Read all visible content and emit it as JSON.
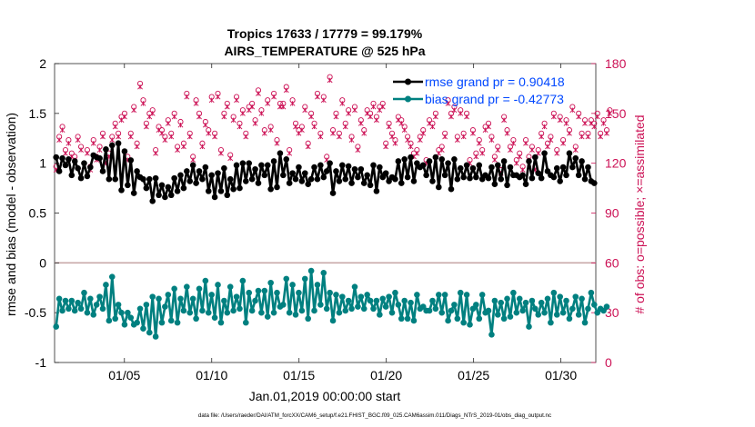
{
  "chart_data": {
    "type": "line",
    "title": "Tropics 17633 / 17779 = 99.179%",
    "subtitle": "AIRS_TEMPERATURE @ 525 hPa",
    "xlabel": "Jan.01,2019 00:00:00 start",
    "ylabel_left": "rmse and bias (model - observation)",
    "ylabel_right": "# of obs: o=possible; ×=assimilated",
    "footer": "data file: /Users/raeder/DAI/ATM_forcXX/CAM6_setup/f.e21.FHIST_BGC.f09_025.CAM6assim.011/Diags_NTrS_2019-01/obs_diag_output.nc",
    "x_ticks": [
      "01/05",
      "01/10",
      "01/15",
      "01/20",
      "01/25",
      "01/30"
    ],
    "x_tick_days": [
      5,
      10,
      15,
      20,
      25,
      30
    ],
    "xlim": [
      1,
      32
    ],
    "ylim_left": [
      -1,
      2
    ],
    "yticks_left": [
      "-1",
      "-0.5",
      "0",
      "0.5",
      "1",
      "1.5",
      "2"
    ],
    "ylim_right": [
      0,
      180
    ],
    "yticks_right": [
      "0",
      "30",
      "60",
      "90",
      "120",
      "150",
      "180"
    ],
    "zero_line": 0,
    "colors": {
      "rmse": "#000000",
      "bias": "#008080",
      "obs": "#cc1155",
      "legend_text": "#0047ff",
      "zero": "#c8a8a8"
    },
    "legend": [
      {
        "key": "rmse",
        "label": "rmse grand pr = 0.90418"
      },
      {
        "key": "bias",
        "label": "bias grand pr = -0.42773"
      }
    ],
    "series": [
      {
        "name": "rmse",
        "axis": "left",
        "values": [
          1.06,
          0.92,
          1.05,
          0.98,
          1.04,
          0.88,
          1.02,
          0.95,
          0.85,
          1.0,
          0.87,
          0.96,
          1.08,
          1.06,
          1.05,
          0.92,
          1.14,
          0.84,
          1.18,
          0.84,
          1.2,
          0.73,
          1.12,
          0.78,
          1.03,
          0.7,
          0.92,
          0.86,
          0.84,
          0.75,
          0.84,
          0.62,
          0.85,
          0.68,
          0.78,
          0.66,
          0.76,
          0.68,
          0.85,
          0.72,
          0.88,
          0.75,
          0.92,
          0.82,
          0.98,
          0.8,
          0.92,
          0.84,
          0.96,
          0.72,
          0.88,
          0.66,
          0.9,
          0.72,
          0.95,
          0.68,
          0.84,
          0.74,
          0.98,
          0.75,
          1.0,
          0.82,
          1.0,
          0.84,
          0.94,
          0.8,
          0.98,
          0.88,
          0.98,
          0.74,
          1.02,
          0.76,
          1.1,
          0.88,
          1.04,
          0.8,
          0.9,
          0.84,
          0.96,
          0.82,
          0.9,
          0.79,
          0.84,
          0.96,
          0.84,
          0.98,
          0.86,
          0.92,
          1.0,
          0.7,
          0.92,
          0.82,
          0.98,
          0.84,
          0.97,
          0.8,
          0.94,
          0.86,
          0.94,
          0.8,
          0.88,
          0.78,
          0.98,
          0.72,
          0.96,
          0.86,
          0.9,
          0.82,
          0.86,
          0.84,
          1.02,
          0.8,
          1.04,
          0.86,
          1.06,
          0.82,
          1.0,
          0.96,
          0.98,
          0.88,
          1.02,
          0.82,
          1.06,
          0.76,
          1.04,
          0.88,
          1.0,
          0.74,
          1.04,
          0.84,
          0.95,
          0.86,
          0.98,
          0.85,
          0.95,
          0.86,
          0.98,
          0.84,
          0.88,
          0.85,
          0.96,
          0.79,
          0.98,
          0.84,
          1.02,
          0.78,
          0.96,
          0.88,
          0.88,
          0.86,
          0.88,
          0.79,
          1.02,
          0.85,
          1.06,
          0.9,
          0.85,
          1.1,
          0.92,
          0.88,
          0.86,
          0.95,
          0.82,
          0.96,
          0.88,
          1.1,
          0.96,
          1.05,
          0.88,
          1.02,
          0.84,
          0.96,
          0.82,
          0.8
        ]
      },
      {
        "name": "bias",
        "axis": "left",
        "values": [
          -0.64,
          -0.36,
          -0.48,
          -0.38,
          -0.46,
          -0.38,
          -0.48,
          -0.4,
          -0.46,
          -0.3,
          -0.5,
          -0.36,
          -0.52,
          -0.42,
          -0.34,
          -0.46,
          -0.22,
          -0.58,
          -0.14,
          -0.56,
          -0.42,
          -0.5,
          -0.62,
          -0.5,
          -0.55,
          -0.62,
          -0.6,
          -0.46,
          -0.66,
          -0.42,
          -0.7,
          -0.34,
          -0.74,
          -0.36,
          -0.6,
          -0.44,
          -0.32,
          -0.58,
          -0.26,
          -0.6,
          -0.36,
          -0.48,
          -0.24,
          -0.5,
          -0.36,
          -0.56,
          -0.26,
          -0.48,
          -0.18,
          -0.5,
          -0.32,
          -0.55,
          -0.22,
          -0.6,
          -0.38,
          -0.5,
          -0.24,
          -0.48,
          -0.34,
          -0.46,
          -0.18,
          -0.6,
          -0.3,
          -0.48,
          -0.38,
          -0.28,
          -0.5,
          -0.28,
          -0.54,
          -0.2,
          -0.5,
          -0.3,
          -0.44,
          -0.42,
          -0.16,
          -0.5,
          -0.22,
          -0.52,
          -0.3,
          -0.48,
          -0.16,
          -0.56,
          -0.08,
          -0.48,
          -0.22,
          -0.42,
          -0.1,
          -0.46,
          -0.3,
          -0.58,
          -0.32,
          -0.5,
          -0.34,
          -0.48,
          -0.38,
          -0.46,
          -0.24,
          -0.44,
          -0.34,
          -0.46,
          -0.32,
          -0.38,
          -0.46,
          -0.38,
          -0.52,
          -0.36,
          -0.44,
          -0.34,
          -0.5,
          -0.3,
          -0.42,
          -0.56,
          -0.38,
          -0.56,
          -0.4,
          -0.58,
          -0.32,
          -0.46,
          -0.44,
          -0.48,
          -0.48,
          -0.38,
          -0.46,
          -0.32,
          -0.5,
          -0.32,
          -0.58,
          -0.48,
          -0.42,
          -0.56,
          -0.3,
          -0.6,
          -0.32,
          -0.62,
          -0.46,
          -0.42,
          -0.56,
          -0.32,
          -0.5,
          -0.48,
          -0.72,
          -0.38,
          -0.52,
          -0.4,
          -0.56,
          -0.36,
          -0.54,
          -0.3,
          -0.5,
          -0.36,
          -0.48,
          -0.4,
          -0.64,
          -0.38,
          -0.46,
          -0.52,
          -0.4,
          -0.5,
          -0.36,
          -0.6,
          -0.3,
          -0.52,
          -0.34,
          -0.5,
          -0.38,
          -0.56,
          -0.46,
          -0.34,
          -0.52,
          -0.36,
          -0.6,
          -0.46,
          -0.3,
          -0.42,
          -0.5,
          -0.46,
          -0.48,
          -0.44
        ]
      },
      {
        "name": "possible",
        "axis": "right",
        "marker": "o",
        "values": [
          118,
          136,
          142,
          128,
          134,
          126,
          124,
          136,
          130,
          120,
          128,
          118,
          134,
          124,
          130,
          138,
          122,
          126,
          136,
          144,
          138,
          148,
          150,
          124,
          138,
          154,
          132,
          168,
          158,
          144,
          150,
          152,
          128,
          142,
          140,
          136,
          146,
          138,
          150,
          130,
          145,
          132,
          162,
          138,
          124,
          158,
          150,
          132,
          145,
          140,
          160,
          138,
          162,
          128,
          150,
          156,
          125,
          148,
          160,
          144,
          152,
          138,
          154,
          156,
          146,
          164,
          152,
          140,
          158,
          142,
          162,
          134,
          156,
          156,
          166,
          128,
          158,
          144,
          140,
          142,
          154,
          132,
          150,
          144,
          162,
          138,
          160,
          124,
          172,
          140,
          150,
          138,
          158,
          144,
          152,
          136,
          154,
          130,
          146,
          140,
          152,
          150,
          156,
          148,
          154,
          156,
          132,
          144,
          138,
          134,
          148,
          146,
          142,
          136,
          132,
          126,
          128,
          136,
          140,
          122,
          146,
          144,
          150,
          128,
          130,
          138,
          158,
          150,
          154,
          136,
          152,
          138,
          150,
          122,
          140,
          126,
          134,
          128,
          142,
          144,
          136,
          124,
          130,
          116,
          148,
          140,
          130,
          134,
          122,
          126,
          118,
          134,
          124,
          130,
          118,
          128,
          138,
          144,
          132,
          136,
          150,
          128,
          148,
          134,
          146,
          140,
          154,
          130,
          150,
          138,
          146,
          138,
          146,
          144,
          150,
          138,
          146,
          140,
          152
        ]
      },
      {
        "name": "assimilated",
        "axis": "right",
        "marker": "x",
        "values": [
          116,
          134,
          140,
          126,
          132,
          124,
          122,
          134,
          128,
          118,
          126,
          116,
          132,
          122,
          128,
          136,
          120,
          124,
          134,
          142,
          136,
          146,
          148,
          122,
          136,
          152,
          130,
          166,
          156,
          142,
          148,
          150,
          126,
          140,
          138,
          134,
          144,
          136,
          148,
          128,
          143,
          130,
          160,
          136,
          122,
          156,
          148,
          130,
          143,
          138,
          158,
          136,
          160,
          126,
          148,
          154,
          123,
          146,
          158,
          142,
          150,
          136,
          152,
          154,
          144,
          162,
          150,
          138,
          156,
          140,
          160,
          132,
          154,
          154,
          164,
          126,
          156,
          142,
          138,
          140,
          152,
          130,
          148,
          142,
          160,
          136,
          158,
          122,
          170,
          138,
          148,
          136,
          156,
          142,
          150,
          134,
          152,
          128,
          144,
          138,
          150,
          148,
          154,
          146,
          152,
          154,
          130,
          142,
          136,
          132,
          146,
          144,
          140,
          134,
          130,
          124,
          126,
          134,
          138,
          120,
          144,
          142,
          148,
          126,
          128,
          136,
          156,
          148,
          152,
          134,
          150,
          136,
          148,
          120,
          138,
          124,
          132,
          126,
          140,
          142,
          134,
          122,
          128,
          114,
          146,
          138,
          128,
          132,
          120,
          124,
          116,
          132,
          122,
          128,
          116,
          126,
          136,
          142,
          130,
          134,
          148,
          126,
          146,
          132,
          144,
          138,
          152,
          128,
          148,
          136,
          144,
          136,
          144,
          142,
          148,
          136,
          144,
          138,
          150
        ]
      }
    ]
  }
}
